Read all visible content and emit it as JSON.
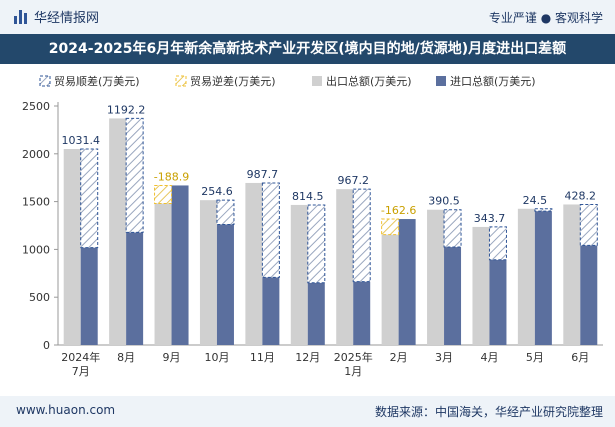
{
  "header": {
    "brand": "华经情报网",
    "tagline": "专业严谨 ● 客观科学"
  },
  "footer": {
    "website": "www.huaon.com",
    "source": "数据来源：中国海关，华经产业研究院整理"
  },
  "colors": {
    "export": "#d0d0d0",
    "import": "#5b6f9e",
    "surplus_border": "#2f5597",
    "deficit_border": "#f0c030",
    "surplus_label": "#1f3864",
    "deficit_label": "#c9a000"
  },
  "chart_data": {
    "type": "bar",
    "title": "2024-2025年6月年新余高新技术产业开发区(境内目的地/货源地)月度进出口差额",
    "categories": [
      "2024年\n7月",
      "8月",
      "9月",
      "10月",
      "11月",
      "12月",
      "2025年\n1月",
      "2月",
      "3月",
      "4月",
      "5月",
      "6月"
    ],
    "ylim": [
      0,
      2500
    ],
    "yticks": [
      0,
      500,
      1000,
      1500,
      2000,
      2500
    ],
    "legend": [
      "贸易顺差(万美元)",
      "贸易逆差(万美元)",
      "出口总额(万美元)",
      "进口总额(万美元)"
    ],
    "legend_position": "top-left",
    "series": [
      {
        "name": "出口总额(万美元)",
        "values": [
          2050,
          2370,
          1480,
          1515,
          1695,
          1465,
          1630,
          1155,
          1415,
          1235,
          1425,
          1470
        ]
      },
      {
        "name": "进口总额(万美元)",
        "values": [
          1018.6,
          1177.8,
          1668.9,
          1260.4,
          707.3,
          650.5,
          662.8,
          1317.6,
          1024.5,
          891.3,
          1400.5,
          1041.8
        ]
      },
      {
        "name": "贸易差额(万美元)",
        "values": [
          1031.4,
          1192.2,
          -188.9,
          254.6,
          987.7,
          814.5,
          967.2,
          -162.6,
          390.5,
          343.7,
          24.5,
          428.2
        ]
      }
    ],
    "balance_labels": [
      "1031.4",
      "1192.2",
      "-188.9",
      "254.6",
      "987.7",
      "814.5",
      "967.2",
      "-162.6",
      "390.5",
      "343.7",
      "24.5",
      "428.2"
    ]
  }
}
